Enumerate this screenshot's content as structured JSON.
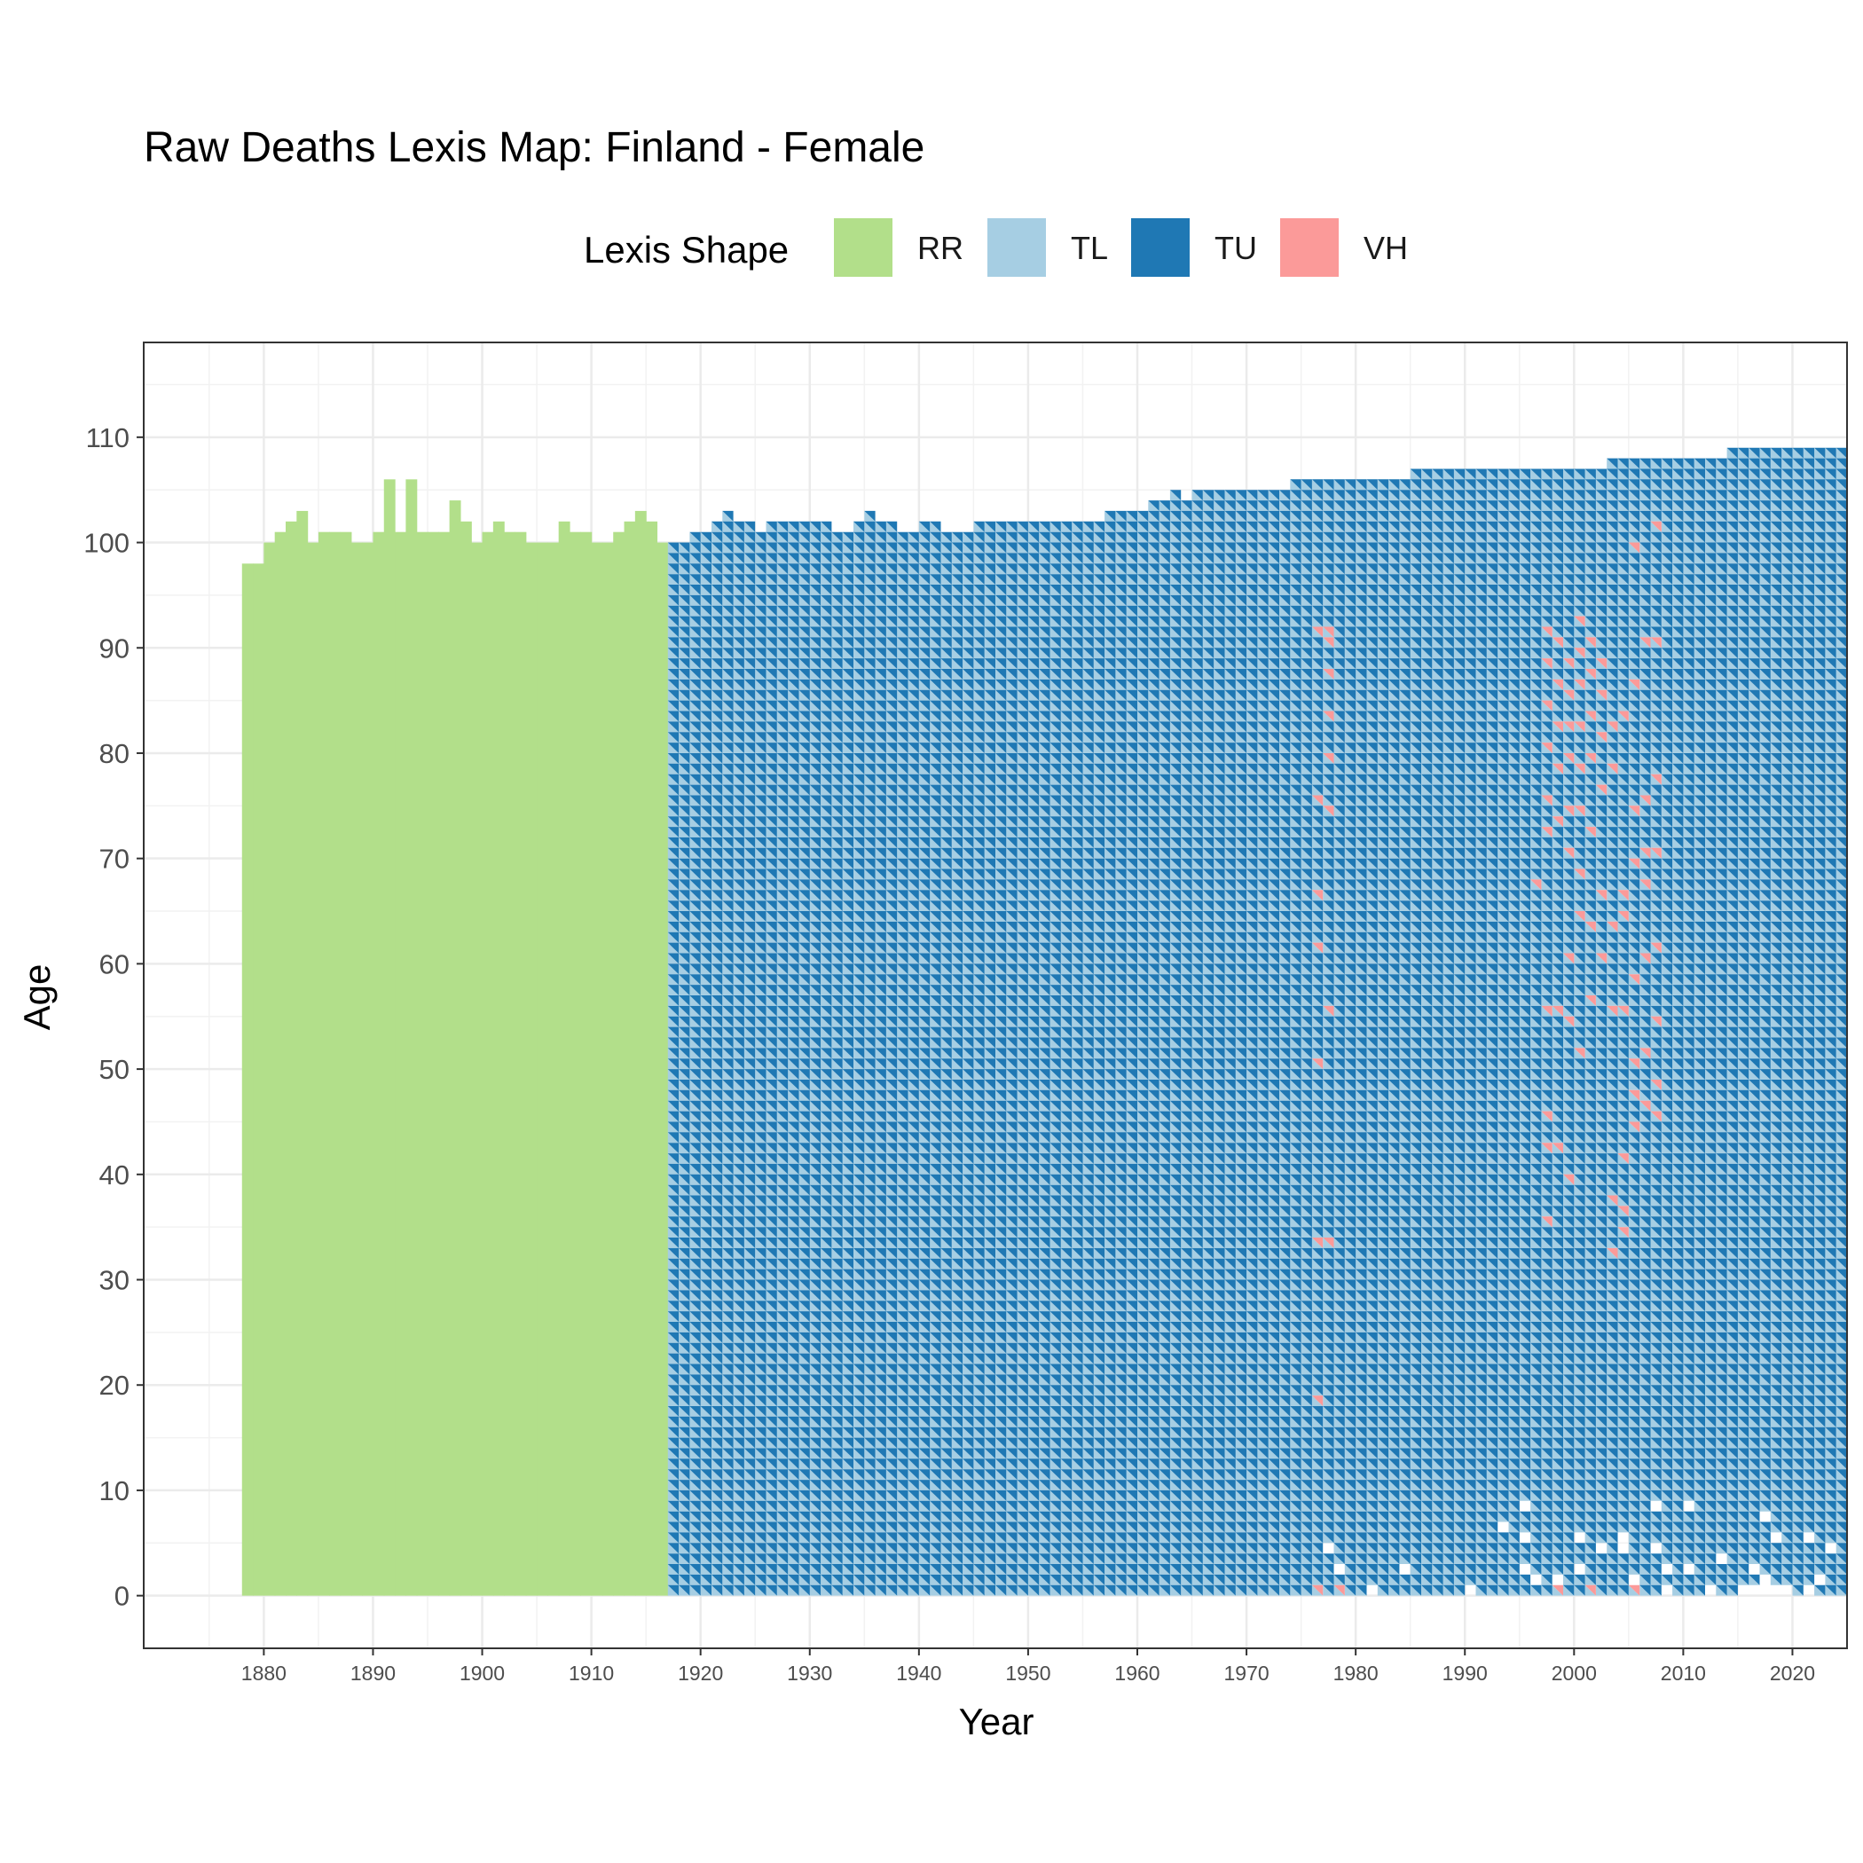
{
  "chart_data": {
    "type": "heatmap",
    "title": "Raw Deaths Lexis Map: Finland - Female",
    "xlabel": "Year",
    "ylabel": "Age",
    "xlim": [
      1869,
      2025
    ],
    "ylim": [
      -5,
      119
    ],
    "x_ticks": [
      1880,
      1890,
      1900,
      1910,
      1920,
      1930,
      1940,
      1950,
      1960,
      1970,
      1980,
      1990,
      2000,
      2010,
      2020
    ],
    "y_ticks": [
      0,
      10,
      20,
      30,
      40,
      50,
      60,
      70,
      80,
      90,
      100,
      110
    ],
    "grid": true,
    "legend": {
      "title": "Lexis Shape",
      "position": "top",
      "entries": [
        {
          "label": "RR",
          "color": "#b2df8a"
        },
        {
          "label": "TL",
          "color": "#a6cee3"
        },
        {
          "label": "TU",
          "color": "#1f78b4"
        },
        {
          "label": "VH",
          "color": "#fb9a99"
        }
      ]
    },
    "regions": [
      {
        "shape": "RR",
        "year_start": 1878,
        "year_end": 1916,
        "age_start": 0,
        "age_top": [
          98,
          98,
          100,
          101,
          102,
          103,
          100,
          101,
          101,
          101,
          100,
          100,
          101,
          106,
          101,
          106,
          101,
          101,
          101,
          104,
          102,
          100,
          101,
          102,
          101,
          101,
          100,
          100,
          100,
          102,
          101,
          101,
          100,
          100,
          101,
          102,
          103,
          102,
          100
        ]
      },
      {
        "shape": "TL+TU",
        "year_start": 1917,
        "year_end": 2024,
        "age_start": 0,
        "age_top": [
          99,
          99,
          100,
          100,
          101,
          102,
          101,
          101,
          100,
          101,
          101,
          101,
          101,
          101,
          101,
          100,
          100,
          101,
          102,
          101,
          101,
          100,
          100,
          101,
          101,
          100,
          100,
          100,
          101,
          101,
          101,
          101,
          101,
          101,
          101,
          101,
          101,
          101,
          101,
          101,
          102,
          102,
          102,
          102,
          103,
          103,
          104,
          103,
          104,
          104,
          104,
          104,
          104,
          104,
          104,
          104,
          104,
          105,
          105,
          105,
          105,
          105,
          105,
          105,
          105,
          105,
          105,
          105,
          106,
          106,
          106,
          106,
          106,
          106,
          106,
          106,
          106,
          106,
          106,
          106,
          106,
          106,
          106,
          106,
          106,
          106,
          107,
          107,
          107,
          107,
          107,
          107,
          107,
          107,
          107,
          107,
          107,
          108,
          108,
          108,
          108,
          108,
          108,
          108,
          108,
          108,
          108,
          108
        ]
      },
      {
        "shape": "VH",
        "note": "scattered cells",
        "cells": [
          [
            1976,
            0
          ],
          [
            1978,
            0
          ],
          [
            1998,
            0
          ],
          [
            2001,
            0
          ],
          [
            2005,
            0
          ],
          [
            1976,
            18
          ],
          [
            1976,
            33
          ],
          [
            1977,
            33
          ],
          [
            1976,
            50
          ],
          [
            1977,
            55
          ],
          [
            1976,
            61
          ],
          [
            1976,
            66
          ],
          [
            1977,
            74
          ],
          [
            1976,
            75
          ],
          [
            1977,
            79
          ],
          [
            1977,
            83
          ],
          [
            1977,
            87
          ],
          [
            1977,
            90
          ],
          [
            1976,
            91
          ],
          [
            1977,
            91
          ],
          [
            1997,
            35
          ],
          [
            1997,
            42
          ],
          [
            1998,
            42
          ],
          [
            1997,
            45
          ],
          [
            1997,
            55
          ],
          [
            1998,
            55
          ],
          [
            1996,
            67
          ],
          [
            1997,
            72
          ],
          [
            1998,
            73
          ],
          [
            1997,
            75
          ],
          [
            1998,
            78
          ],
          [
            1997,
            80
          ],
          [
            1998,
            82
          ],
          [
            1997,
            84
          ],
          [
            1998,
            86
          ],
          [
            1997,
            88
          ],
          [
            1998,
            90
          ],
          [
            1997,
            91
          ],
          [
            1999,
            60
          ],
          [
            1999,
            70
          ],
          [
            1999,
            74
          ],
          [
            1999,
            79
          ],
          [
            1999,
            82
          ],
          [
            1999,
            85
          ],
          [
            1999,
            88
          ],
          [
            1999,
            39
          ],
          [
            1999,
            54
          ],
          [
            2000,
            51
          ],
          [
            2000,
            64
          ],
          [
            2000,
            68
          ],
          [
            2000,
            74
          ],
          [
            2000,
            78
          ],
          [
            2000,
            82
          ],
          [
            2000,
            86
          ],
          [
            2000,
            89
          ],
          [
            2000,
            92
          ],
          [
            2001,
            56
          ],
          [
            2001,
            63
          ],
          [
            2001,
            72
          ],
          [
            2001,
            79
          ],
          [
            2001,
            83
          ],
          [
            2001,
            87
          ],
          [
            2001,
            90
          ],
          [
            2002,
            60
          ],
          [
            2002,
            66
          ],
          [
            2002,
            76
          ],
          [
            2002,
            81
          ],
          [
            2002,
            85
          ],
          [
            2002,
            88
          ],
          [
            2003,
            32
          ],
          [
            2003,
            37
          ],
          [
            2003,
            55
          ],
          [
            2003,
            63
          ],
          [
            2003,
            78
          ],
          [
            2003,
            82
          ],
          [
            2004,
            34
          ],
          [
            2004,
            36
          ],
          [
            2004,
            41
          ],
          [
            2004,
            55
          ],
          [
            2004,
            64
          ],
          [
            2004,
            66
          ],
          [
            2004,
            83
          ],
          [
            2005,
            44
          ],
          [
            2005,
            47
          ],
          [
            2005,
            50
          ],
          [
            2005,
            58
          ],
          [
            2005,
            69
          ],
          [
            2005,
            74
          ],
          [
            2005,
            86
          ],
          [
            2005,
            99
          ],
          [
            2006,
            46
          ],
          [
            2006,
            51
          ],
          [
            2006,
            60
          ],
          [
            2006,
            67
          ],
          [
            2006,
            70
          ],
          [
            2006,
            75
          ],
          [
            2006,
            90
          ],
          [
            2007,
            45
          ],
          [
            2007,
            48
          ],
          [
            2007,
            54
          ],
          [
            2007,
            61
          ],
          [
            2007,
            70
          ],
          [
            2007,
            77
          ],
          [
            2007,
            90
          ],
          [
            2007,
            101
          ]
        ]
      },
      {
        "shape": "empty",
        "note": "missing cells at low ages",
        "year_range": [
          1971,
          2024
        ],
        "age_range": [
          0,
          21
        ]
      }
    ]
  }
}
